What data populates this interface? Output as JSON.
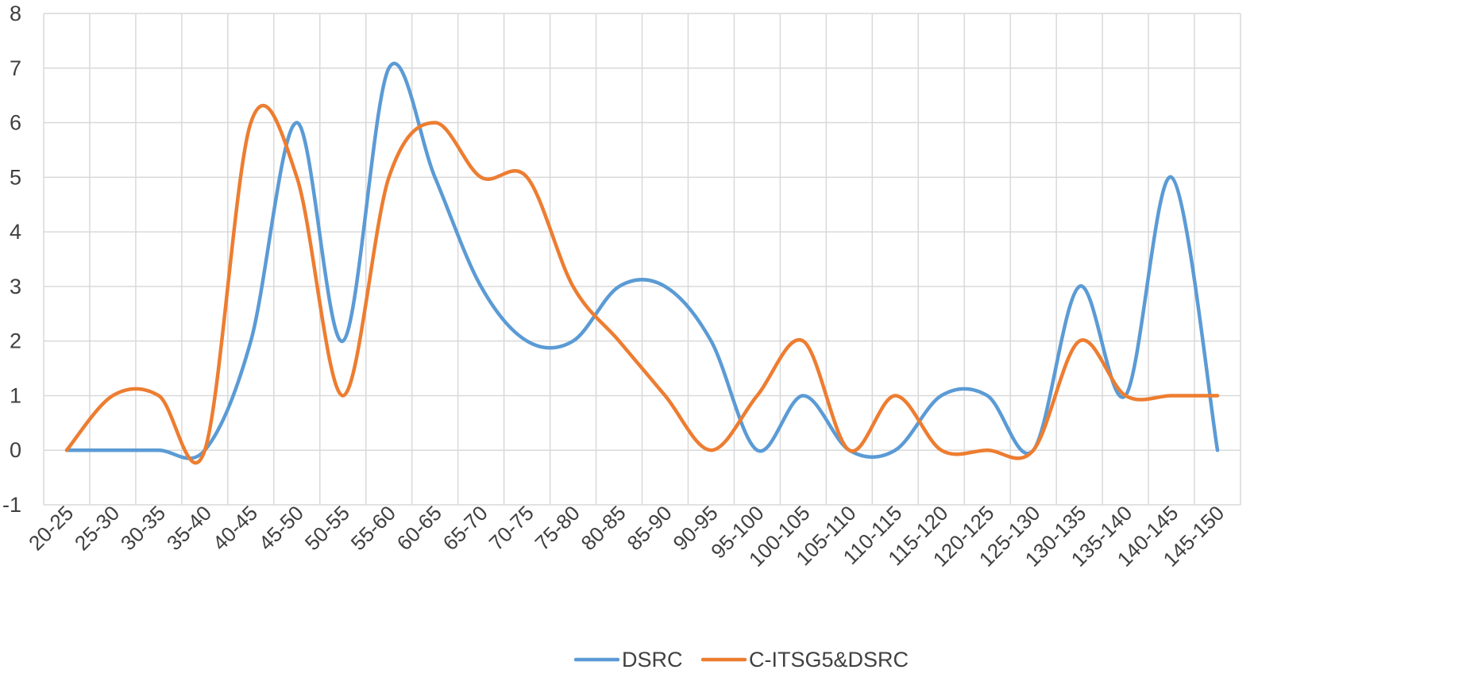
{
  "chart_data": {
    "type": "line",
    "smooth": true,
    "categories": [
      "20-25",
      "25-30",
      "30-35",
      "35-40",
      "40-45",
      "45-50",
      "50-55",
      "55-60",
      "60-65",
      "65-70",
      "70-75",
      "75-80",
      "80-85",
      "85-90",
      "90-95",
      "95-100",
      "100-105",
      "105-110",
      "110-115",
      "115-120",
      "120-125",
      "125-130",
      "130-135",
      "135-140",
      "140-145",
      "145-150"
    ],
    "series": [
      {
        "name": "DSRC",
        "color": "#5b9bd5",
        "values": [
          0,
          0,
          0,
          0,
          2,
          6,
          2,
          7,
          5,
          3,
          2,
          2,
          3,
          3,
          2,
          0,
          1,
          0,
          0,
          1,
          1,
          0,
          3,
          1,
          5,
          0
        ]
      },
      {
        "name": "C-ITS\u0005G5\u0005&\u0005DSRC",
        "color": "#ed7d31",
        "values": [
          0,
          1,
          1,
          0,
          6,
          5,
          1,
          5,
          6,
          5,
          5,
          3,
          2,
          1,
          0,
          1,
          2,
          0,
          1,
          0,
          0,
          0,
          2,
          1,
          1,
          1
        ]
      }
    ],
    "ylim": [
      -1,
      8
    ],
    "yticks": [
      -1,
      0,
      1,
      2,
      3,
      4,
      5,
      6,
      7,
      8
    ],
    "grid": true,
    "legend": "bottom",
    "title": "",
    "xlabel": "",
    "ylabel": ""
  }
}
